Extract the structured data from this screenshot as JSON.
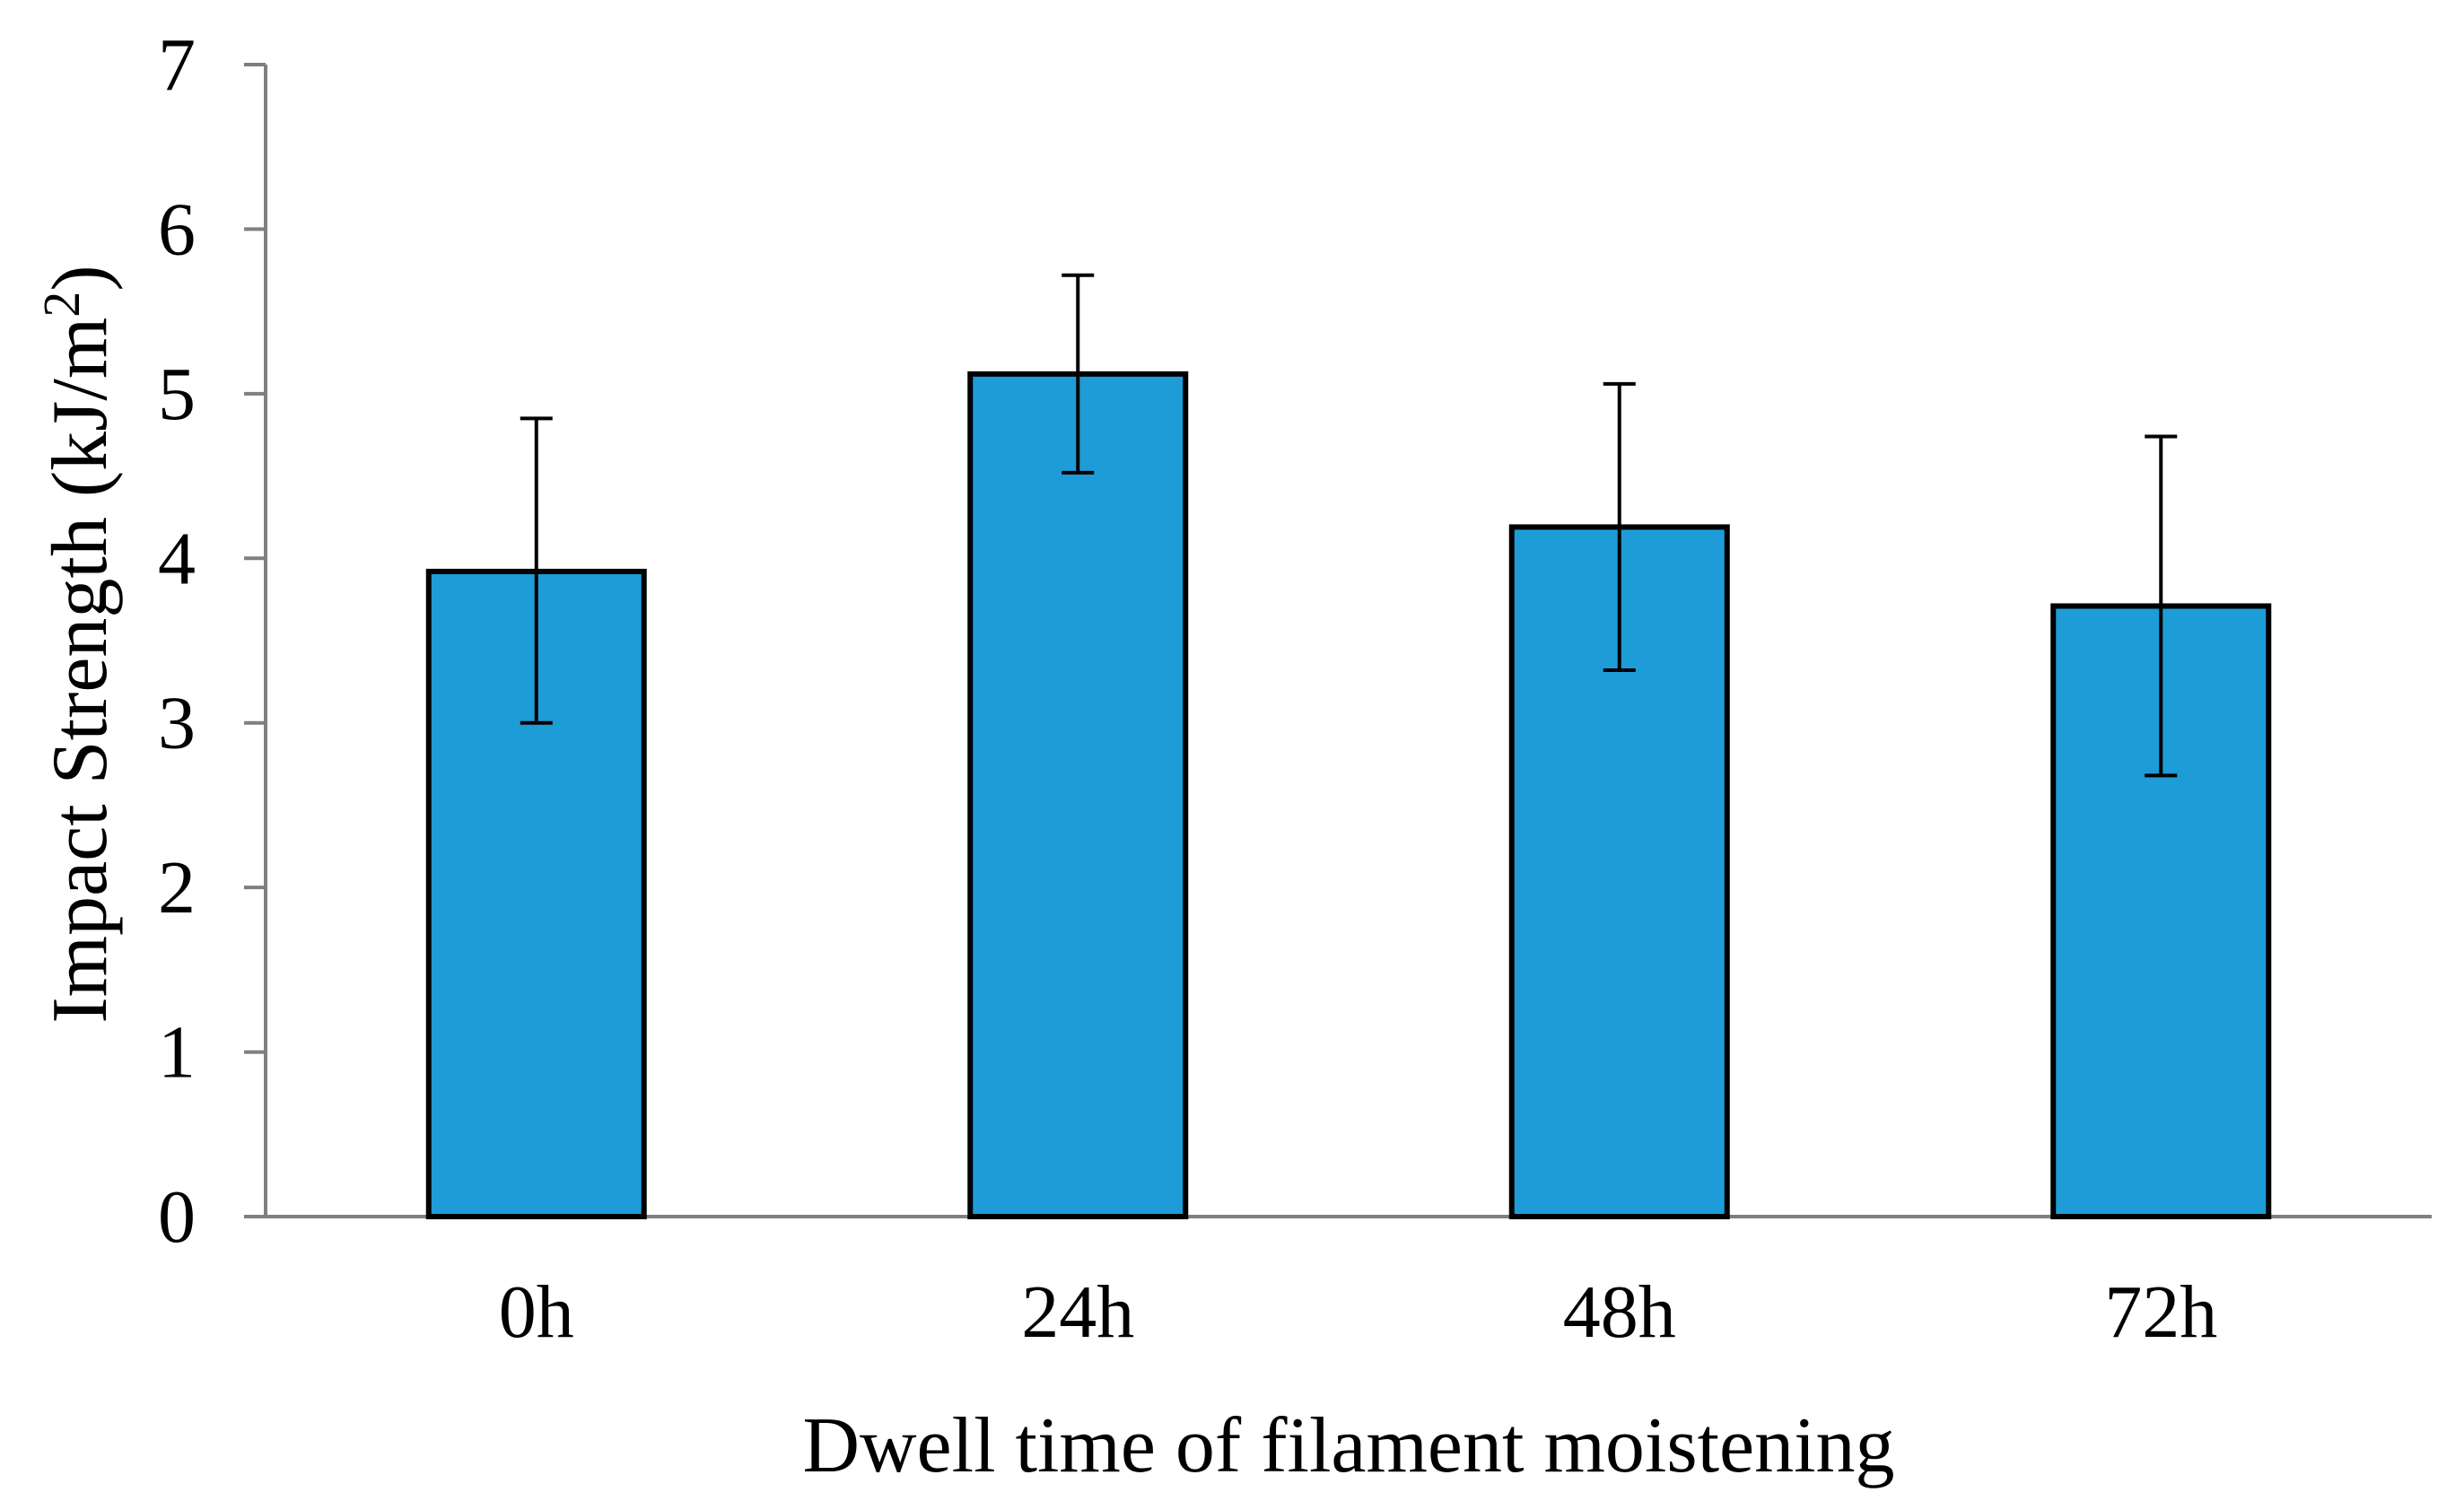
{
  "chart_data": {
    "type": "bar",
    "title": "",
    "xlabel": "Dwell time of filament moistening",
    "ylabel": "Impact Strength (kJ/m",
    "ylabel_sup": "2",
    "ylabel_end": ")",
    "categories": [
      "0h",
      "24h",
      "48h",
      "72h"
    ],
    "values": [
      3.92,
      5.12,
      4.19,
      3.71
    ],
    "error_low": [
      3.0,
      4.52,
      3.32,
      2.68
    ],
    "error_high": [
      4.85,
      5.72,
      5.06,
      4.74
    ],
    "ylim": [
      0,
      7
    ],
    "yticks": [
      "0",
      "1",
      "2",
      "3",
      "4",
      "5",
      "6",
      "7"
    ],
    "grid": false,
    "bar_color": "#1e9cd8",
    "edge_color": "#000000"
  }
}
